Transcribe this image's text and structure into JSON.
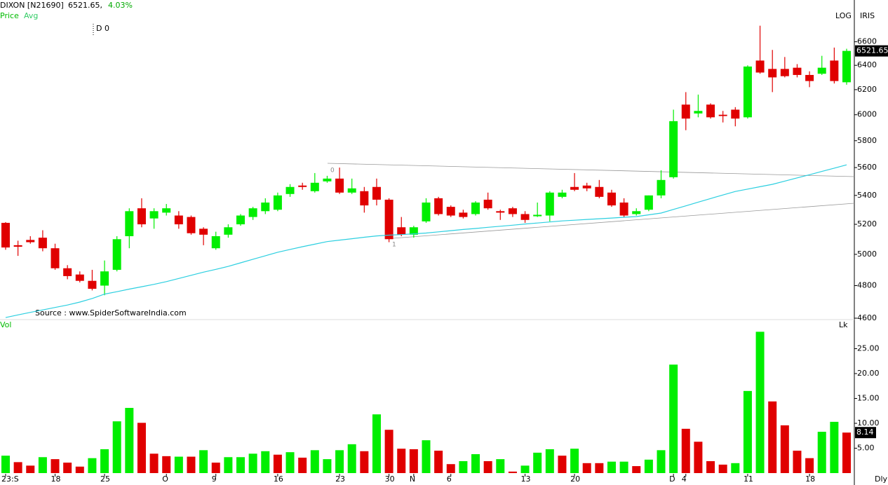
{
  "chart_data": {
    "type": "candlestick",
    "title": "DIXON [N21690]",
    "price_text": "6521.65,",
    "change_text": "4.03%",
    "price_name": "Price",
    "annotation": "D 0",
    "scale_labels": [
      "LOG",
      "IRIS"
    ],
    "source": "Source : www.SpiderSoftwareIndia.com",
    "frequency": "Dly",
    "swing_labels": [
      "0",
      "1"
    ],
    "log_scale": true,
    "up_color": "#00ee00",
    "down_color": "#e00000",
    "categories": [
      "23:S",
      null,
      null,
      null,
      "18",
      null,
      null,
      null,
      "25",
      null,
      null,
      null,
      null,
      "O",
      null,
      null,
      null,
      "9",
      null,
      null,
      null,
      null,
      "16",
      null,
      null,
      null,
      null,
      "23",
      null,
      null,
      null,
      "30",
      null,
      "N",
      null,
      null,
      "6",
      null,
      null,
      null,
      null,
      null,
      "13",
      null,
      null,
      null,
      "20",
      null,
      null,
      null,
      null,
      null,
      null,
      null,
      "D",
      "4",
      null,
      null,
      null,
      null,
      "11",
      null,
      null,
      null,
      null,
      "18",
      null,
      null,
      null
    ],
    "open": [
      5210,
      5060,
      5095,
      5110,
      5040,
      4910,
      4870,
      4830,
      4800,
      4900,
      5120,
      5310,
      5240,
      5280,
      5260,
      5250,
      5170,
      5040,
      5130,
      5200,
      5250,
      5290,
      5300,
      5410,
      5470,
      5430,
      5500,
      5520,
      5420,
      5430,
      5460,
      5370,
      5180,
      5130,
      5220,
      5380,
      5320,
      5280,
      5270,
      5370,
      5290,
      5310,
      5270,
      5255,
      5260,
      5390,
      5460,
      5470,
      5460,
      5420,
      5350,
      5270,
      5300,
      5400,
      5530,
      6080,
      6010,
      6080,
      6000,
      6040,
      5980,
      6440,
      6370,
      6370,
      6380,
      6320,
      6330,
      6440,
      6260
    ],
    "high": [
      5215,
      5090,
      5120,
      5160,
      5070,
      4930,
      4890,
      4900,
      4960,
      5120,
      5310,
      5380,
      5310,
      5340,
      5290,
      5260,
      5180,
      5150,
      5200,
      5270,
      5320,
      5380,
      5420,
      5480,
      5490,
      5560,
      5540,
      5600,
      5520,
      5460,
      5520,
      5380,
      5250,
      5190,
      5380,
      5390,
      5330,
      5300,
      5360,
      5420,
      5300,
      5320,
      5290,
      5350,
      5430,
      5440,
      5560,
      5490,
      5510,
      5440,
      5380,
      5310,
      5400,
      5580,
      6040,
      6180,
      6160,
      6090,
      6030,
      6060,
      6400,
      6740,
      6530,
      6470,
      6410,
      6350,
      6480,
      6550,
      6540
    ],
    "low": [
      5030,
      4990,
      5070,
      5020,
      4900,
      4840,
      4820,
      4770,
      4740,
      4890,
      5040,
      5180,
      5170,
      5260,
      5170,
      5130,
      5060,
      5030,
      5110,
      5190,
      5230,
      5270,
      5290,
      5390,
      5440,
      5420,
      5490,
      5410,
      5410,
      5280,
      5330,
      5080,
      5120,
      5110,
      5210,
      5260,
      5250,
      5240,
      5260,
      5300,
      5230,
      5250,
      5210,
      5250,
      5220,
      5380,
      5430,
      5430,
      5380,
      5320,
      5250,
      5260,
      5290,
      5380,
      5520,
      5880,
      5980,
      5970,
      5940,
      5910,
      5970,
      6330,
      6180,
      6300,
      6300,
      6220,
      6320,
      6250,
      6240
    ],
    "close": [
      5045,
      5050,
      5080,
      5040,
      4910,
      4860,
      4830,
      4780,
      4890,
      5100,
      5290,
      5200,
      5290,
      5310,
      5200,
      5140,
      5130,
      5120,
      5180,
      5260,
      5310,
      5350,
      5400,
      5460,
      5460,
      5490,
      5520,
      5420,
      5450,
      5330,
      5370,
      5100,
      5130,
      5180,
      5350,
      5270,
      5260,
      5250,
      5350,
      5310,
      5280,
      5270,
      5230,
      5265,
      5420,
      5420,
      5440,
      5450,
      5390,
      5330,
      5260,
      5290,
      5400,
      5510,
      5950,
      5970,
      6030,
      5980,
      5990,
      5970,
      6390,
      6340,
      6300,
      6310,
      6320,
      6270,
      6380,
      6270,
      6521.65
    ],
    "ylim": [
      4600,
      6970
    ],
    "yticks": [
      4600,
      4800,
      5000,
      5200,
      5400,
      5600,
      5800,
      6000,
      6200,
      6400,
      6600
    ],
    "avg": {
      "name": "Avg",
      "color": "#2ccfe0",
      "values": [
        4604,
        4620,
        4635,
        4650,
        4665,
        4680,
        4698,
        4720,
        4747,
        4762,
        4778,
        4793,
        4808,
        4825,
        4845,
        4865,
        4885,
        4903,
        4922,
        4945,
        4968,
        4991,
        5014,
        5032,
        5050,
        5067,
        5084,
        5094,
        5103,
        5113,
        5122,
        5127,
        5131,
        5136,
        5141,
        5149,
        5157,
        5165,
        5172,
        5180,
        5187,
        5194,
        5202,
        5209,
        5216,
        5223,
        5228,
        5233,
        5238,
        5243,
        5248,
        5253,
        5265,
        5277,
        5302,
        5327,
        5353,
        5378,
        5403,
        5428,
        5445,
        5462,
        5479,
        5502,
        5525,
        5548,
        5572,
        5596,
        5620
      ]
    },
    "volume": {
      "name": "Vol",
      "unit": "Lk",
      "values": [
        3.5,
        2.2,
        1.5,
        3.2,
        2.8,
        2.1,
        1.3,
        3.0,
        4.8,
        10.4,
        13.1,
        10.1,
        3.9,
        3.4,
        3.3,
        3.3,
        4.6,
        2.1,
        3.2,
        3.2,
        3.9,
        4.4,
        3.7,
        4.2,
        3.1,
        4.6,
        2.8,
        4.6,
        5.8,
        4.4,
        11.8,
        8.7,
        4.9,
        4.8,
        6.6,
        4.5,
        1.8,
        2.4,
        3.8,
        2.4,
        2.8,
        0.3,
        1.5,
        4.1,
        4.8,
        3.5,
        4.9,
        2.0,
        2.0,
        2.3,
        2.3,
        1.4,
        2.7,
        4.6,
        21.8,
        8.9,
        6.3,
        2.4,
        1.7,
        2.0,
        16.5,
        28.4,
        14.4,
        9.6,
        4.5,
        3.0,
        8.3,
        10.3,
        8.14
      ],
      "colors": [
        "#00ee00",
        "#e00000",
        "#e00000",
        "#00ee00",
        "#e00000",
        "#e00000",
        "#e00000",
        "#00ee00",
        "#00ee00",
        "#00ee00",
        "#00ee00",
        "#e00000",
        "#e00000",
        "#e00000",
        "#00ee00",
        "#e00000",
        "#00ee00",
        "#e00000",
        "#00ee00",
        "#00ee00",
        "#00ee00",
        "#00ee00",
        "#e00000",
        "#00ee00",
        "#e00000",
        "#00ee00",
        "#00ee00",
        "#00ee00",
        "#00ee00",
        "#e00000",
        "#00ee00",
        "#e00000",
        "#e00000",
        "#e00000",
        "#00ee00",
        "#e00000",
        "#e00000",
        "#00ee00",
        "#00ee00",
        "#e00000",
        "#00ee00",
        "#e00000",
        "#00ee00",
        "#00ee00",
        "#00ee00",
        "#e00000",
        "#00ee00",
        "#e00000",
        "#e00000",
        "#00ee00",
        "#00ee00",
        "#e00000",
        "#00ee00",
        "#00ee00",
        "#00ee00",
        "#e00000",
        "#e00000",
        "#e00000",
        "#e00000",
        "#00ee00",
        "#00ee00",
        "#00ee00",
        "#e00000",
        "#e00000",
        "#e00000",
        "#e00000",
        "#00ee00",
        "#00ee00",
        "#e00000"
      ],
      "ylim": [
        0,
        30
      ],
      "yticks": [
        {
          "value": 5,
          "label": "5.00"
        },
        {
          "value": 10,
          "label": "10.00"
        },
        {
          "value": 15,
          "label": "15.00"
        },
        {
          "value": 20,
          "label": "20.00"
        },
        {
          "value": 25,
          "label": "25.00"
        }
      ]
    }
  }
}
